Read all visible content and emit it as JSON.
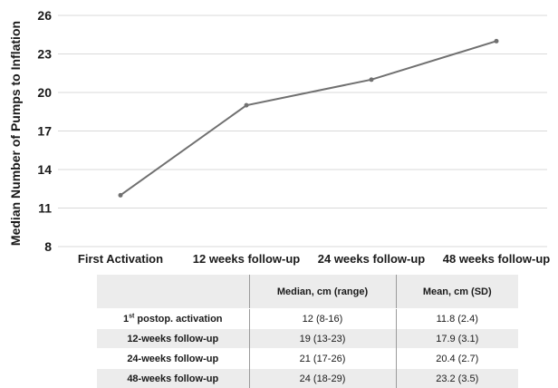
{
  "chart_data": {
    "type": "line",
    "title": "",
    "xlabel": "",
    "ylabel": "Median Number of Pumps to Inflation",
    "categories": [
      "First Activation",
      "12 weeks follow-up",
      "24 weeks follow-up",
      "48 weeks follow-up"
    ],
    "series": [
      {
        "values": [
          12,
          19,
          21,
          24
        ]
      }
    ],
    "ylim": [
      8,
      26
    ],
    "yticks": [
      8,
      11,
      14,
      17,
      20,
      23,
      26
    ],
    "grid": true,
    "legend": "none",
    "line_color": "#707070",
    "grid_color": "#d9d9d9"
  },
  "table": {
    "headers": [
      "",
      "Median, cm (range)",
      "Mean, cm (SD)"
    ],
    "rows": [
      {
        "label_sup": "st",
        "label_pre": "1",
        "label_post": " postop. activation",
        "median": "12 (8-16)",
        "mean": "11.8 (2.4)"
      },
      {
        "label": "12-weeks follow-up",
        "median": "19 (13-23)",
        "mean": "17.9 (3.1)"
      },
      {
        "label": "24-weeks follow-up",
        "median": "21 (17-26)",
        "mean": "20.4 (2.7)"
      },
      {
        "label": "48-weeks follow-up",
        "median": "24 (18-29)",
        "mean": "23.2 (3.5)"
      }
    ],
    "header_bg": "#ececec",
    "stripe_bg": "#ececec"
  }
}
